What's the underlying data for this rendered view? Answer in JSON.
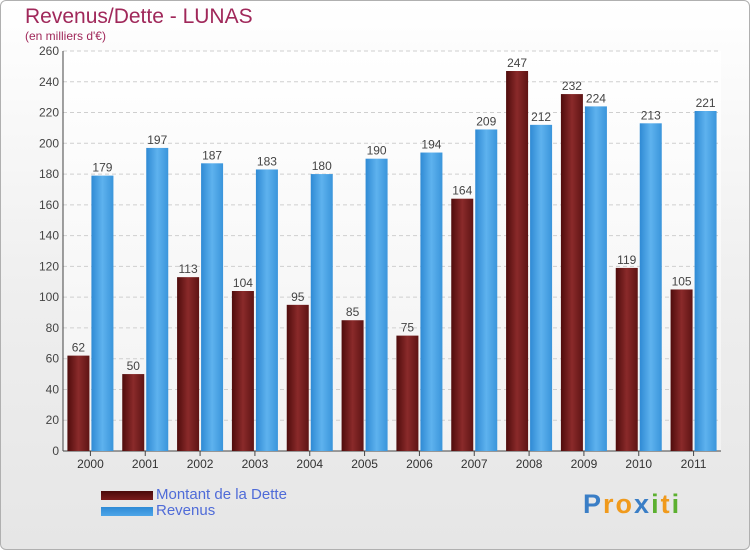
{
  "chart_data": {
    "type": "bar",
    "title": "Revenus/Dette - LUNAS",
    "subtitle": "(en milliers d'€)",
    "xlabel": "",
    "ylabel": "",
    "ylim": [
      0,
      260
    ],
    "ytick_step": 20,
    "grid": true,
    "categories": [
      "2000",
      "2001",
      "2002",
      "2003",
      "2004",
      "2005",
      "2006",
      "2007",
      "2008",
      "2009",
      "2010",
      "2011"
    ],
    "series": [
      {
        "name": "Montant de la Dette",
        "color": "#7a1c1c",
        "values": [
          62,
          50,
          113,
          104,
          95,
          85,
          75,
          164,
          247,
          232,
          119,
          105
        ]
      },
      {
        "name": "Revenus",
        "color": "#4ea6e8",
        "values": [
          179,
          197,
          187,
          183,
          180,
          190,
          194,
          209,
          212,
          224,
          213,
          221
        ]
      }
    ],
    "legend_position": "bottom-left"
  },
  "logo": {
    "letters": [
      "P",
      "r",
      "o",
      "x",
      "i",
      "t",
      "i"
    ],
    "colors": [
      "#3a7ec6",
      "#f09a1c",
      "#f09a1c",
      "#3a7ec6",
      "#5cb030",
      "#f09a1c",
      "#5cb030"
    ]
  }
}
